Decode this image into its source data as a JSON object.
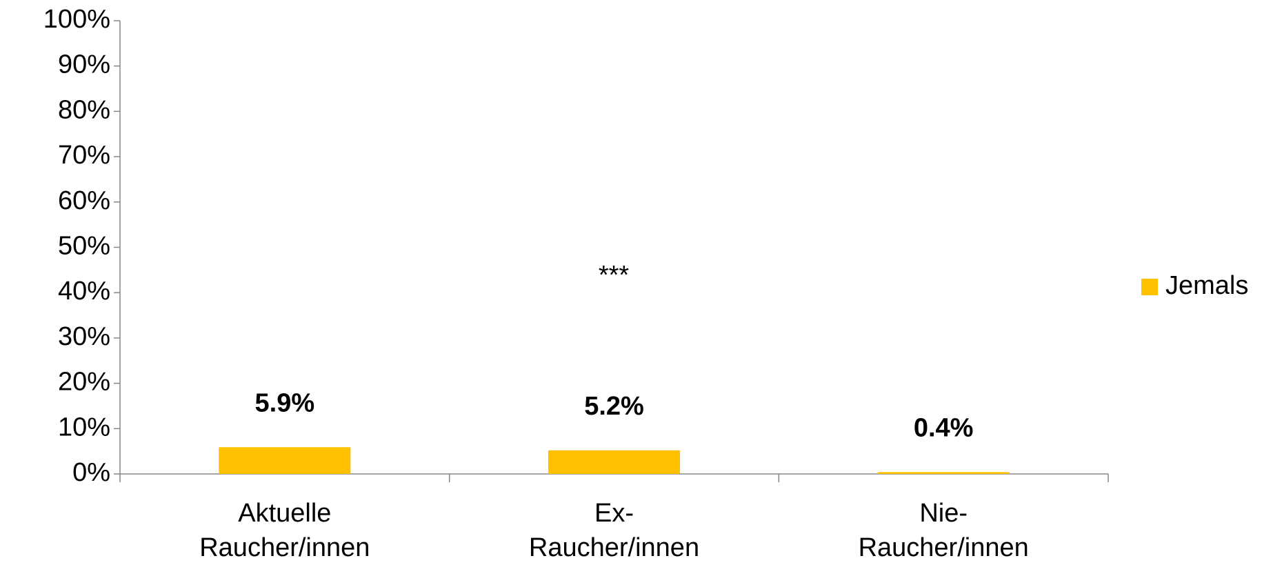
{
  "chart_data": {
    "type": "bar",
    "categories": [
      "Aktuelle\nRaucher/innen",
      "Ex-\nRaucher/innen",
      "Nie-\nRaucher/innen"
    ],
    "series": [
      {
        "name": "Jemals",
        "color": "#FFC000",
        "values": [
          5.9,
          5.2,
          0.4
        ],
        "value_labels": [
          "5.9%",
          "5.2%",
          "0.4%"
        ]
      }
    ],
    "value_label_color": "#F5A31A",
    "annotations": [
      "***"
    ],
    "ylim": [
      0,
      100
    ],
    "yticks": [
      {
        "value": 0,
        "label": "0%"
      },
      {
        "value": 10,
        "label": "10%"
      },
      {
        "value": 20,
        "label": "20%"
      },
      {
        "value": 30,
        "label": "30%"
      },
      {
        "value": 40,
        "label": "40%"
      },
      {
        "value": 50,
        "label": "50%"
      },
      {
        "value": 60,
        "label": "60%"
      },
      {
        "value": 70,
        "label": "70%"
      },
      {
        "value": 80,
        "label": "80%"
      },
      {
        "value": 90,
        "label": "90%"
      },
      {
        "value": 100,
        "label": "100%"
      }
    ],
    "legend": "right",
    "grid": false
  }
}
